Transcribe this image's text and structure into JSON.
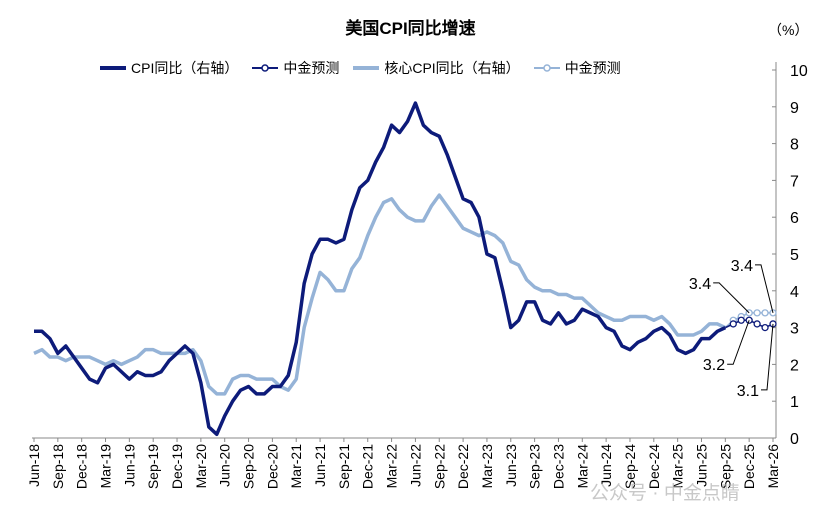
{
  "chart_data": {
    "type": "line",
    "title": "美国CPI同比增速",
    "unit": "（%）",
    "y_axis": {
      "side": "right",
      "ylim": [
        0,
        10
      ],
      "ticks": [
        0,
        1,
        2,
        3,
        4,
        5,
        6,
        7,
        8,
        9,
        10
      ]
    },
    "x_start": "Jun-18",
    "x_end": "Mar-26",
    "x_tick_labels": [
      "Jun-18",
      "Sep-18",
      "Dec-18",
      "Mar-19",
      "Jun-19",
      "Sep-19",
      "Dec-19",
      "Mar-20",
      "Jun-20",
      "Sep-20",
      "Dec-20",
      "Mar-21",
      "Jun-21",
      "Sep-21",
      "Dec-21",
      "Mar-22",
      "Jun-22",
      "Sep-22",
      "Dec-22",
      "Mar-23",
      "Jun-23",
      "Sep-23",
      "Dec-23",
      "Mar-24",
      "Jun-24",
      "Sep-24",
      "Dec-24",
      "Mar-25",
      "Jun-25",
      "Sep-25",
      "Dec-25",
      "Mar-26"
    ],
    "grid": false,
    "legend_position": "top",
    "series": [
      {
        "name": "CPI同比（右轴）",
        "color": "#0d1b7a",
        "start": "Jun-18",
        "style": "line",
        "values": [
          2.9,
          2.9,
          2.7,
          2.3,
          2.5,
          2.2,
          1.9,
          1.6,
          1.5,
          1.9,
          2.0,
          1.8,
          1.6,
          1.8,
          1.7,
          1.7,
          1.8,
          2.1,
          2.3,
          2.5,
          2.3,
          1.5,
          0.3,
          0.1,
          0.6,
          1.0,
          1.3,
          1.4,
          1.2,
          1.2,
          1.4,
          1.4,
          1.7,
          2.6,
          4.2,
          5.0,
          5.4,
          5.4,
          5.3,
          5.4,
          6.2,
          6.8,
          7.0,
          7.5,
          7.9,
          8.5,
          8.3,
          8.6,
          9.1,
          8.5,
          8.3,
          8.2,
          7.7,
          7.1,
          6.5,
          6.4,
          6.0,
          5.0,
          4.9,
          4.0,
          3.0,
          3.2,
          3.7,
          3.7,
          3.2,
          3.1,
          3.4,
          3.1,
          3.2,
          3.5,
          3.4,
          3.3,
          3.0,
          2.9,
          2.5,
          2.4,
          2.6,
          2.7,
          2.9,
          3.0,
          2.8,
          2.4,
          2.3,
          2.4,
          2.7,
          2.7,
          2.9,
          3.0
        ]
      },
      {
        "name": "中金预测",
        "color": "#0d1b7a",
        "start": "Oct-25",
        "style": "dotted-markers",
        "values": [
          3.1,
          3.2,
          3.2,
          3.1,
          3.0,
          3.1
        ]
      },
      {
        "name": "核心CPI同比（右轴）",
        "color": "#95b3d7",
        "start": "Jun-18",
        "style": "line",
        "values": [
          2.3,
          2.4,
          2.2,
          2.2,
          2.1,
          2.2,
          2.2,
          2.2,
          2.1,
          2.0,
          2.1,
          2.0,
          2.1,
          2.2,
          2.4,
          2.4,
          2.3,
          2.3,
          2.3,
          2.3,
          2.4,
          2.1,
          1.4,
          1.2,
          1.2,
          1.6,
          1.7,
          1.7,
          1.6,
          1.6,
          1.6,
          1.4,
          1.3,
          1.6,
          3.0,
          3.8,
          4.5,
          4.3,
          4.0,
          4.0,
          4.6,
          4.9,
          5.5,
          6.0,
          6.4,
          6.5,
          6.2,
          6.0,
          5.9,
          5.9,
          6.3,
          6.6,
          6.3,
          6.0,
          5.7,
          5.6,
          5.5,
          5.6,
          5.5,
          5.3,
          4.8,
          4.7,
          4.3,
          4.1,
          4.0,
          4.0,
          3.9,
          3.9,
          3.8,
          3.8,
          3.6,
          3.4,
          3.3,
          3.2,
          3.2,
          3.3,
          3.3,
          3.3,
          3.2,
          3.3,
          3.1,
          2.8,
          2.8,
          2.8,
          2.9,
          3.1,
          3.1,
          3.0
        ]
      },
      {
        "name": "中金预测",
        "color": "#95b3d7",
        "start": "Oct-25",
        "style": "dotted-markers",
        "values": [
          3.2,
          3.3,
          3.4,
          3.4,
          3.4,
          3.4
        ]
      }
    ],
    "annotations": [
      {
        "text": "3.4",
        "series": 3,
        "at": "Dec-25"
      },
      {
        "text": "3.4",
        "series": 3,
        "at": "Mar-26"
      },
      {
        "text": "3.2",
        "series": 1,
        "at": "Dec-25"
      },
      {
        "text": "3.1",
        "series": 1,
        "at": "Mar-26"
      }
    ]
  },
  "watermark": "公众号 · 中金点睛"
}
